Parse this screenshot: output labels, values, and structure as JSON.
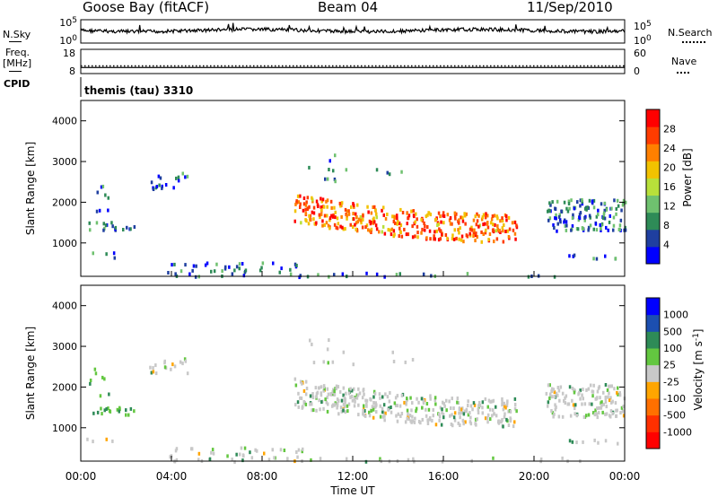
{
  "header": {
    "station": "Goose Bay (fitACF)",
    "beam": "Beam 04",
    "date": "11/Sep/2010"
  },
  "left_labels": {
    "nsky": "N.Sky",
    "freq": "Freq.",
    "freq_unit": "[MHz]",
    "cpid": "CPID"
  },
  "right_labels": {
    "nsearch": "N.Search",
    "nave": "Nave"
  },
  "cpid_text": "themis (tau) 3310",
  "colors": {
    "power": [
      "#0000ff",
      "#1f3fa0",
      "#2e8b57",
      "#6fc16f",
      "#b8e03a",
      "#f2c200",
      "#ff8000",
      "#ff3c00",
      "#ff0000"
    ],
    "velocity": [
      "#0000ff",
      "#1c4fb0",
      "#2e8b57",
      "#63c740",
      "#c8c8c8",
      "#ffa500",
      "#ff7000",
      "#ff3000",
      "#ff0000"
    ]
  },
  "chart_data": [
    {
      "type": "line",
      "name": "noise-panel",
      "x_range": [
        0,
        24
      ],
      "left_ticks": [
        "10^5",
        "10^0"
      ],
      "right_ticks": [
        "10^5",
        "10^0"
      ],
      "series": [
        {
          "name": "N.Sky",
          "style": "solid"
        },
        {
          "name": "N.Search",
          "style": "dotted"
        }
      ]
    },
    {
      "type": "line",
      "name": "freq-panel",
      "x_range": [
        0,
        24
      ],
      "left_ticks": [
        "18",
        "8"
      ],
      "right_ticks": [
        "60",
        "0"
      ],
      "left_range": [
        8,
        18
      ],
      "right_range": [
        0,
        60
      ],
      "series": [
        {
          "name": "Freq.",
          "style": "solid",
          "value": 10.3
        },
        {
          "name": "Nave",
          "style": "dotted",
          "value": 18
        }
      ]
    },
    {
      "type": "heatmap",
      "name": "power-panel",
      "ylabel": "Slant Range [km]",
      "yticks": [
        "1000",
        "2000",
        "3000",
        "4000"
      ],
      "ylim": [
        180,
        4500
      ],
      "xlim": [
        0,
        24
      ],
      "colorbar": {
        "label": "Power [dB]",
        "ticks": [
          "4",
          "8",
          "12",
          "16",
          "20",
          "24",
          "28"
        ]
      }
    },
    {
      "type": "heatmap",
      "name": "velocity-panel",
      "ylabel": "Slant Range [km]",
      "yticks": [
        "1000",
        "2000",
        "3000",
        "4000"
      ],
      "ylim": [
        180,
        4500
      ],
      "xlim": [
        0,
        24
      ],
      "colorbar": {
        "label": "Velocity [m s",
        "label_sup": "-1",
        "label_end": "]",
        "ticks": [
          "1000",
          "500",
          "100",
          "25",
          "-25",
          "-100",
          "-500",
          "-1000"
        ]
      },
      "xlabel": "Time UT",
      "xticks": [
        "00:00",
        "04:00",
        "08:00",
        "12:00",
        "16:00",
        "20:00",
        "00:00"
      ],
      "xtick_values": [
        0,
        4,
        8,
        12,
        16,
        20,
        24
      ]
    }
  ]
}
